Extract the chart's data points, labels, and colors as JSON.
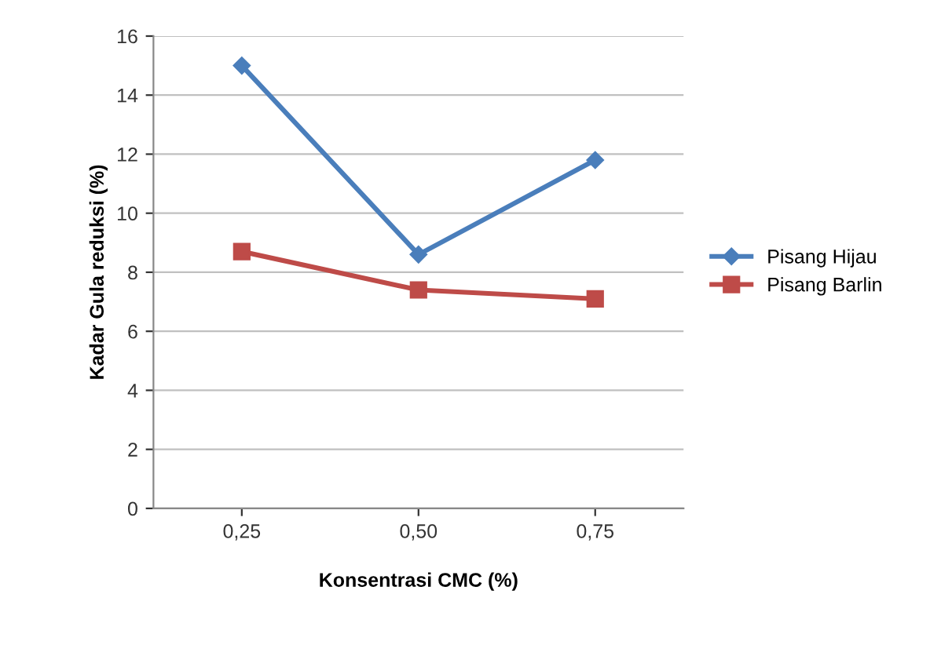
{
  "chart_data": {
    "type": "line",
    "xlabel": "Konsentrasi CMC (%)",
    "ylabel": "Kadar Gula reduksi (%)",
    "categories": [
      "0,25",
      "0,50",
      "0,75"
    ],
    "series": [
      {
        "name": "Pisang Hijau",
        "color": "#4a7ebb",
        "marker": "diamond",
        "values": [
          15.0,
          8.6,
          11.8
        ]
      },
      {
        "name": "Pisang Barlin",
        "color": "#be4b48",
        "marker": "square",
        "values": [
          8.7,
          7.4,
          7.1
        ]
      }
    ],
    "ylim": [
      0,
      16
    ],
    "yticks": [
      0,
      2,
      4,
      6,
      8,
      10,
      12,
      14,
      16
    ],
    "grid": "y",
    "legend": "right"
  }
}
